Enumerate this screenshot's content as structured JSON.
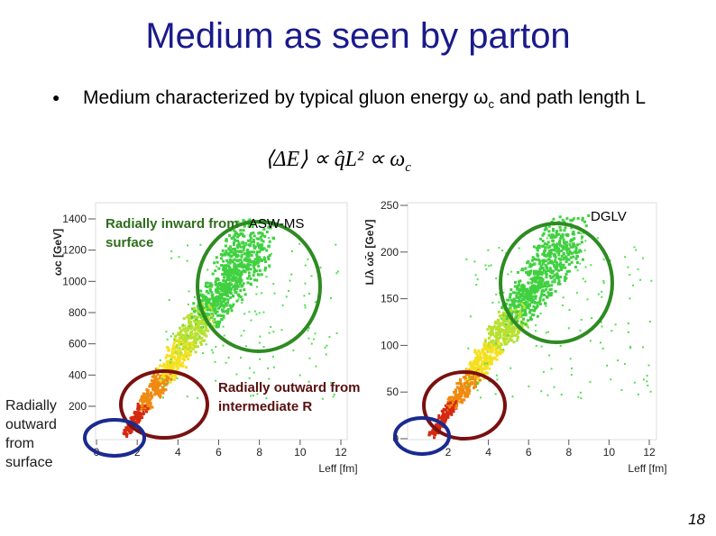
{
  "title": "Medium as seen by parton",
  "bullet": {
    "text": "Medium characterized by typical gluon energy ω",
    "sub": "c",
    "text_end": " and path length L"
  },
  "formula": {
    "main": "⟨ΔE⟩ ∝ q̂L² ∝ ω",
    "sub": "c"
  },
  "left_plot": {
    "y_label": "ωc [GeV]",
    "x_label": "Leff [fm]",
    "model": "ASW-MS",
    "yticks": [
      "1400",
      "1200",
      "1000",
      "800",
      "600",
      "400",
      "200"
    ],
    "xticks": [
      "0",
      "2",
      "4",
      "6",
      "8",
      "10",
      "12"
    ]
  },
  "right_plot": {
    "y_label": "L/λ ω̄c [GeV]",
    "x_label": "Leff [fm]",
    "model": "DGLV",
    "yticks": [
      "250",
      "200",
      "150",
      "100",
      "50",
      "0"
    ],
    "xticks": [
      "2",
      "4",
      "6",
      "8",
      "10",
      "12"
    ]
  },
  "annotations": {
    "inward": "Radially inward from surface",
    "outward_surface": "Radially outward from surface",
    "outward_intermediate": "Radially outward from intermediate R"
  },
  "page_number": "18"
}
